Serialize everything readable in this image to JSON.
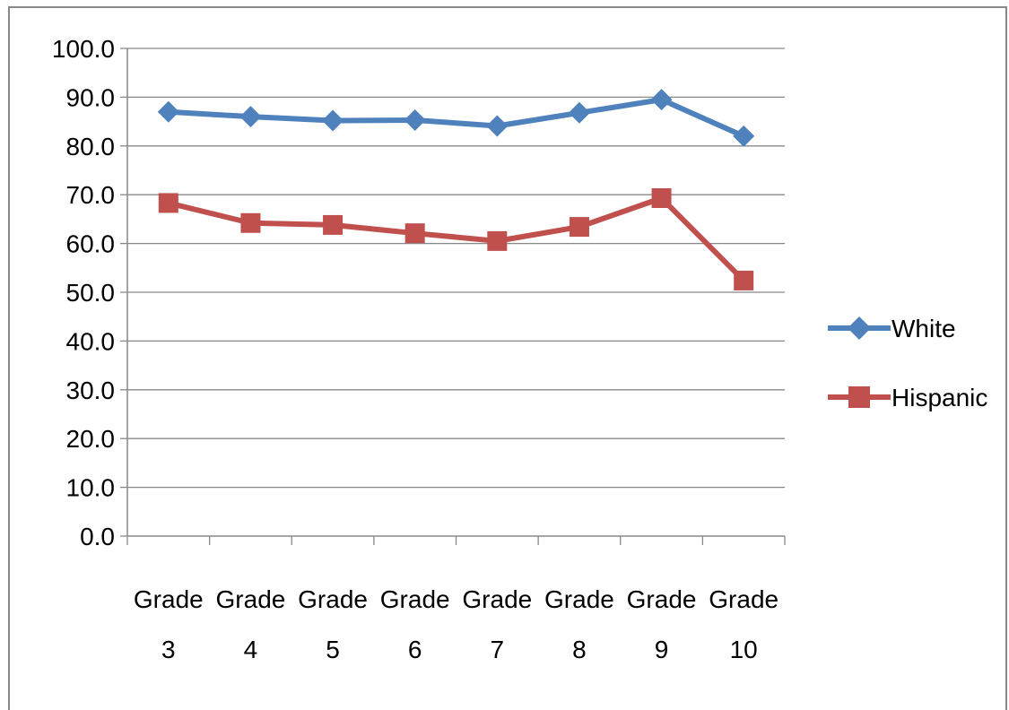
{
  "chart_data": {
    "type": "line",
    "categories": [
      [
        "Grade",
        "3"
      ],
      [
        "Grade",
        "4"
      ],
      [
        "Grade",
        "5"
      ],
      [
        "Grade",
        "6"
      ],
      [
        "Grade",
        "7"
      ],
      [
        "Grade",
        "8"
      ],
      [
        "Grade",
        "9"
      ],
      [
        "Grade",
        "10"
      ]
    ],
    "ylim": [
      0,
      100
    ],
    "yticks": [
      "0.0",
      "10.0",
      "20.0",
      "30.0",
      "40.0",
      "50.0",
      "60.0",
      "70.0",
      "80.0",
      "90.0",
      "100.0"
    ],
    "grid": true,
    "legend_position": "right",
    "series": [
      {
        "name": "White",
        "color": "#4f81bd",
        "marker": "diamond",
        "values": [
          87.0,
          86.0,
          85.2,
          85.3,
          84.1,
          86.8,
          89.5,
          82.0
        ]
      },
      {
        "name": "Hispanic",
        "color": "#c0504d",
        "marker": "square",
        "values": [
          68.3,
          64.2,
          63.8,
          62.1,
          60.5,
          63.4,
          69.3,
          52.4
        ]
      }
    ]
  }
}
